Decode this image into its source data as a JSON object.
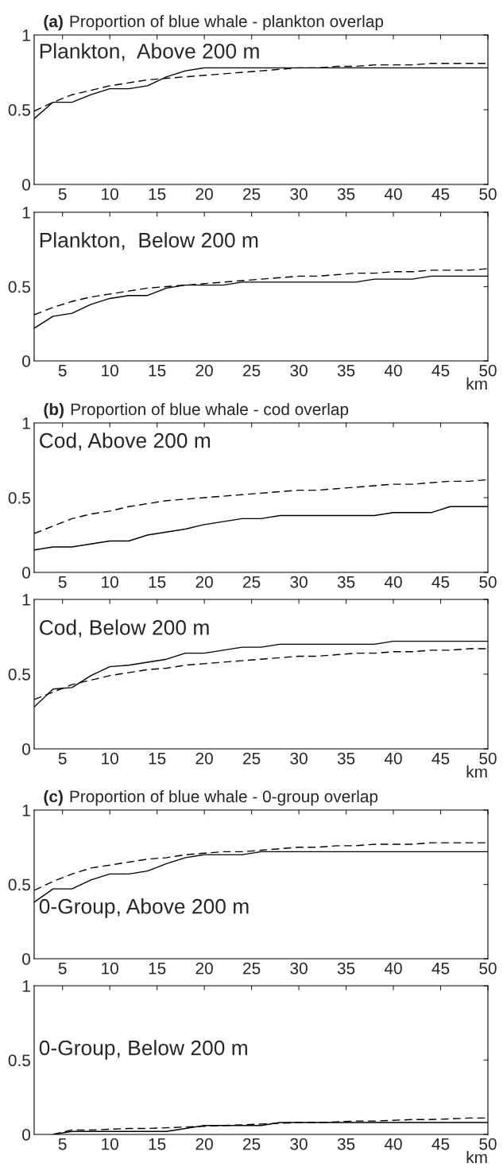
{
  "chart_data": [
    {
      "type": "line",
      "title": "(a) Proportion of blue whale - plankton overlap",
      "annotations": [
        "Plankton,  Above 200 m"
      ],
      "x": [
        2,
        4,
        6,
        8,
        10,
        12,
        14,
        16,
        18,
        20,
        22,
        24,
        26,
        28,
        30,
        32,
        34,
        36,
        38,
        40,
        42,
        44,
        46,
        48,
        50
      ],
      "xlim": [
        2,
        50
      ],
      "xticks": [
        5,
        10,
        15,
        20,
        25,
        30,
        35,
        40,
        45,
        50
      ],
      "ylim": [
        0,
        1
      ],
      "yticks": [
        0,
        0.5,
        1
      ],
      "series": [
        {
          "color": "#000000",
          "line_style": "solid",
          "values": [
            0.44,
            0.55,
            0.55,
            0.6,
            0.64,
            0.64,
            0.66,
            0.72,
            0.76,
            0.78,
            0.78,
            0.78,
            0.78,
            0.78,
            0.78,
            0.78,
            0.78,
            0.78,
            0.78,
            0.78,
            0.78,
            0.78,
            0.78,
            0.78,
            0.78
          ]
        },
        {
          "color": "#000000",
          "line_style": "dashed",
          "values": [
            0.49,
            0.55,
            0.6,
            0.63,
            0.66,
            0.68,
            0.7,
            0.71,
            0.72,
            0.73,
            0.74,
            0.75,
            0.76,
            0.77,
            0.78,
            0.78,
            0.79,
            0.79,
            0.8,
            0.8,
            0.8,
            0.81,
            0.81,
            0.81,
            0.81
          ]
        }
      ]
    },
    {
      "type": "line",
      "xlabel": "km",
      "annotations": [
        "Plankton,  Below 200 m"
      ],
      "x": [
        2,
        4,
        6,
        8,
        10,
        12,
        14,
        16,
        18,
        20,
        22,
        24,
        26,
        28,
        30,
        32,
        34,
        36,
        38,
        40,
        42,
        44,
        46,
        48,
        50
      ],
      "xlim": [
        2,
        50
      ],
      "xticks": [
        5,
        10,
        15,
        20,
        25,
        30,
        35,
        40,
        45,
        50
      ],
      "ylim": [
        0,
        1
      ],
      "yticks": [
        0,
        0.5,
        1
      ],
      "series": [
        {
          "color": "#000000",
          "line_style": "solid",
          "values": [
            0.22,
            0.3,
            0.32,
            0.38,
            0.42,
            0.44,
            0.44,
            0.49,
            0.51,
            0.51,
            0.51,
            0.53,
            0.53,
            0.53,
            0.53,
            0.53,
            0.53,
            0.53,
            0.55,
            0.55,
            0.55,
            0.57,
            0.57,
            0.57,
            0.57
          ]
        },
        {
          "color": "#000000",
          "line_style": "dashed",
          "values": [
            0.31,
            0.36,
            0.4,
            0.43,
            0.45,
            0.47,
            0.49,
            0.5,
            0.51,
            0.52,
            0.53,
            0.54,
            0.55,
            0.56,
            0.57,
            0.57,
            0.58,
            0.59,
            0.59,
            0.6,
            0.6,
            0.61,
            0.61,
            0.61,
            0.62
          ]
        }
      ]
    },
    {
      "type": "line",
      "title": "(b) Proportion of blue whale - cod overlap",
      "annotations": [
        "Cod, Above 200 m"
      ],
      "x": [
        2,
        4,
        6,
        8,
        10,
        12,
        14,
        16,
        18,
        20,
        22,
        24,
        26,
        28,
        30,
        32,
        34,
        36,
        38,
        40,
        42,
        44,
        46,
        48,
        50
      ],
      "xlim": [
        2,
        50
      ],
      "xticks": [
        5,
        10,
        15,
        20,
        25,
        30,
        35,
        40,
        45,
        50
      ],
      "ylim": [
        0,
        1
      ],
      "yticks": [
        0,
        0.5,
        1
      ],
      "series": [
        {
          "color": "#000000",
          "line_style": "solid",
          "values": [
            0.15,
            0.17,
            0.17,
            0.19,
            0.21,
            0.21,
            0.25,
            0.27,
            0.29,
            0.32,
            0.34,
            0.36,
            0.36,
            0.38,
            0.38,
            0.38,
            0.38,
            0.38,
            0.38,
            0.4,
            0.4,
            0.4,
            0.44,
            0.44,
            0.44
          ]
        },
        {
          "color": "#000000",
          "line_style": "dashed",
          "values": [
            0.26,
            0.31,
            0.36,
            0.39,
            0.41,
            0.44,
            0.46,
            0.48,
            0.49,
            0.5,
            0.51,
            0.52,
            0.53,
            0.54,
            0.55,
            0.55,
            0.56,
            0.57,
            0.58,
            0.59,
            0.59,
            0.6,
            0.61,
            0.61,
            0.62
          ]
        }
      ]
    },
    {
      "type": "line",
      "xlabel": "km",
      "annotations": [
        "Cod, Below 200 m"
      ],
      "x": [
        2,
        4,
        6,
        8,
        10,
        12,
        14,
        16,
        18,
        20,
        22,
        24,
        26,
        28,
        30,
        32,
        34,
        36,
        38,
        40,
        42,
        44,
        46,
        48,
        50
      ],
      "xlim": [
        2,
        50
      ],
      "xticks": [
        5,
        10,
        15,
        20,
        25,
        30,
        35,
        40,
        45,
        50
      ],
      "ylim": [
        0,
        1
      ],
      "yticks": [
        0,
        0.5,
        1
      ],
      "series": [
        {
          "color": "#000000",
          "line_style": "solid",
          "values": [
            0.28,
            0.4,
            0.41,
            0.49,
            0.55,
            0.56,
            0.58,
            0.6,
            0.64,
            0.64,
            0.66,
            0.68,
            0.68,
            0.7,
            0.7,
            0.7,
            0.7,
            0.7,
            0.7,
            0.72,
            0.72,
            0.72,
            0.72,
            0.72,
            0.72
          ]
        },
        {
          "color": "#000000",
          "line_style": "dashed",
          "values": [
            0.33,
            0.38,
            0.43,
            0.46,
            0.49,
            0.51,
            0.53,
            0.54,
            0.56,
            0.57,
            0.58,
            0.59,
            0.6,
            0.61,
            0.62,
            0.62,
            0.63,
            0.64,
            0.64,
            0.65,
            0.65,
            0.66,
            0.66,
            0.67,
            0.67
          ]
        }
      ]
    },
    {
      "type": "line",
      "title": "(c) Proportion of blue whale - 0-group overlap",
      "annotations": [
        "0-Group, Above 200 m"
      ],
      "x": [
        2,
        4,
        6,
        8,
        10,
        12,
        14,
        16,
        18,
        20,
        22,
        24,
        26,
        28,
        30,
        32,
        34,
        36,
        38,
        40,
        42,
        44,
        46,
        48,
        50
      ],
      "xlim": [
        2,
        50
      ],
      "xticks": [
        5,
        10,
        15,
        20,
        25,
        30,
        35,
        40,
        45,
        50
      ],
      "ylim": [
        0,
        1
      ],
      "yticks": [
        0,
        0.5,
        1
      ],
      "series": [
        {
          "color": "#000000",
          "line_style": "solid",
          "values": [
            0.38,
            0.47,
            0.47,
            0.53,
            0.57,
            0.57,
            0.59,
            0.64,
            0.68,
            0.7,
            0.7,
            0.7,
            0.72,
            0.72,
            0.72,
            0.72,
            0.72,
            0.72,
            0.72,
            0.72,
            0.72,
            0.72,
            0.72,
            0.72,
            0.72
          ]
        },
        {
          "color": "#000000",
          "line_style": "dashed",
          "values": [
            0.46,
            0.52,
            0.57,
            0.61,
            0.63,
            0.65,
            0.67,
            0.68,
            0.7,
            0.71,
            0.72,
            0.72,
            0.73,
            0.74,
            0.75,
            0.75,
            0.76,
            0.76,
            0.77,
            0.77,
            0.77,
            0.78,
            0.78,
            0.78,
            0.78
          ]
        }
      ]
    },
    {
      "type": "line",
      "xlabel": "km",
      "annotations": [
        "0-Group, Below 200 m"
      ],
      "x": [
        4,
        6,
        8,
        10,
        12,
        14,
        16,
        18,
        20,
        22,
        24,
        26,
        28,
        30,
        32,
        34,
        36,
        38,
        40,
        42,
        44,
        46,
        48,
        50
      ],
      "xlim": [
        2,
        50
      ],
      "xticks": [
        5,
        10,
        15,
        20,
        25,
        30,
        35,
        40,
        45,
        50
      ],
      "ylim": [
        0,
        1
      ],
      "yticks": [
        0,
        0.5,
        1
      ],
      "series": [
        {
          "color": "#000000",
          "line_style": "solid",
          "values": [
            0,
            0.02,
            0.02,
            0.02,
            0.02,
            0.02,
            0.02,
            0.04,
            0.06,
            0.06,
            0.06,
            0.06,
            0.08,
            0.08,
            0.08,
            0.08,
            0.08,
            0.08,
            0.08,
            0.08,
            0.08,
            0.08,
            0.08,
            0.08
          ]
        },
        {
          "color": "#000000",
          "line_style": "dashed",
          "values": [
            0,
            0.03,
            0.03,
            0.035,
            0.04,
            0.04,
            0.045,
            0.05,
            0.055,
            0.06,
            0.065,
            0.07,
            0.075,
            0.08,
            0.08,
            0.085,
            0.09,
            0.09,
            0.095,
            0.1,
            0.1,
            0.105,
            0.11,
            0.11
          ]
        }
      ]
    }
  ]
}
